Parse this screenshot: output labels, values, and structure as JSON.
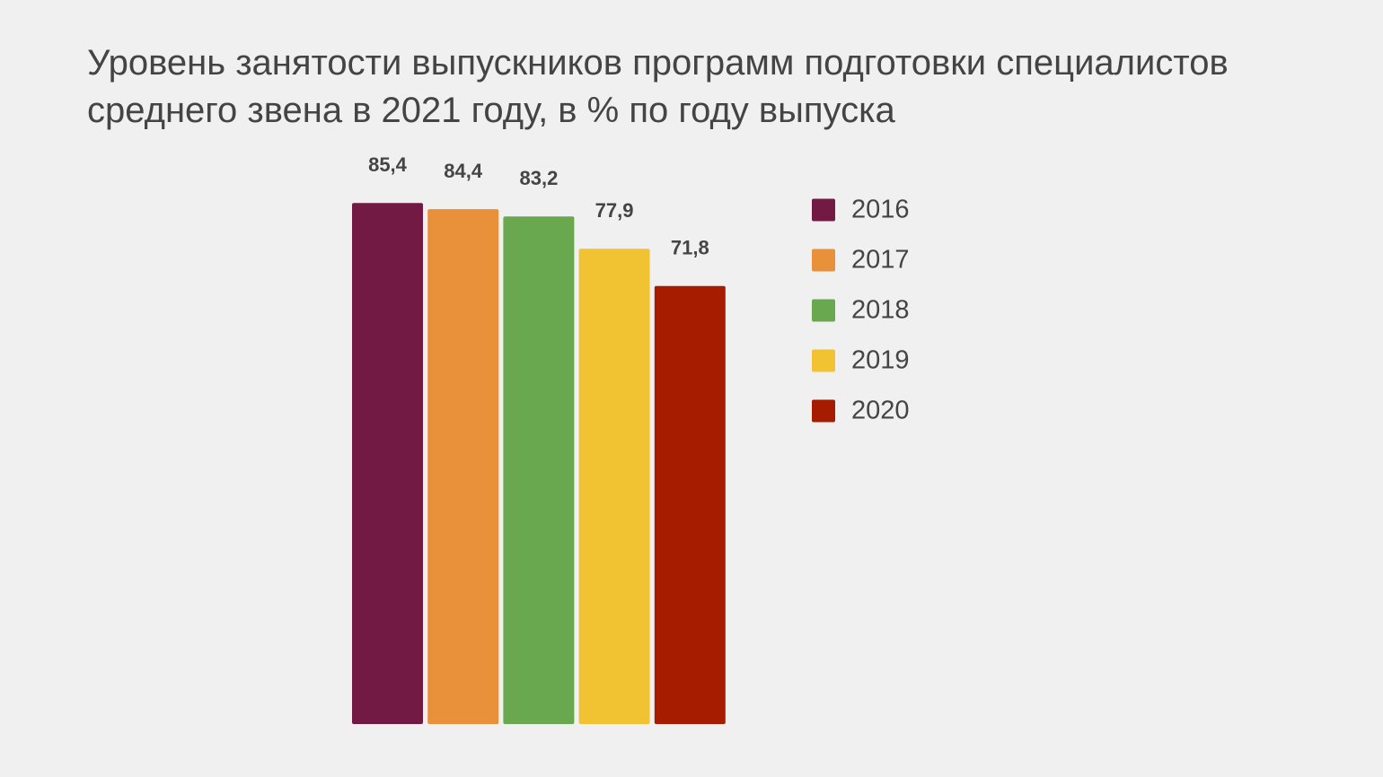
{
  "chart_data": {
    "type": "bar",
    "title": "Уровень занятости выпускников программ подготовки специалистов среднего звена в 2021 году, в % по году выпуска",
    "series": [
      {
        "name": "2016",
        "color": "#731a44",
        "values": [
          85.4
        ],
        "value_labels": [
          "85,4"
        ]
      },
      {
        "name": "2017",
        "color": "#e8903a",
        "values": [
          84.4
        ],
        "value_labels": [
          "84,4"
        ]
      },
      {
        "name": "2018",
        "color": "#6aa84f",
        "values": [
          83.2
        ],
        "value_labels": [
          "83,2"
        ]
      },
      {
        "name": "2019",
        "color": "#f1c232",
        "values": [
          77.9
        ],
        "value_labels": [
          "77,9"
        ]
      },
      {
        "name": "2020",
        "color": "#a61c00",
        "values": [
          71.8
        ],
        "value_labels": [
          "71,8"
        ]
      }
    ],
    "ylim": [
      0,
      100
    ],
    "legend": "right"
  }
}
